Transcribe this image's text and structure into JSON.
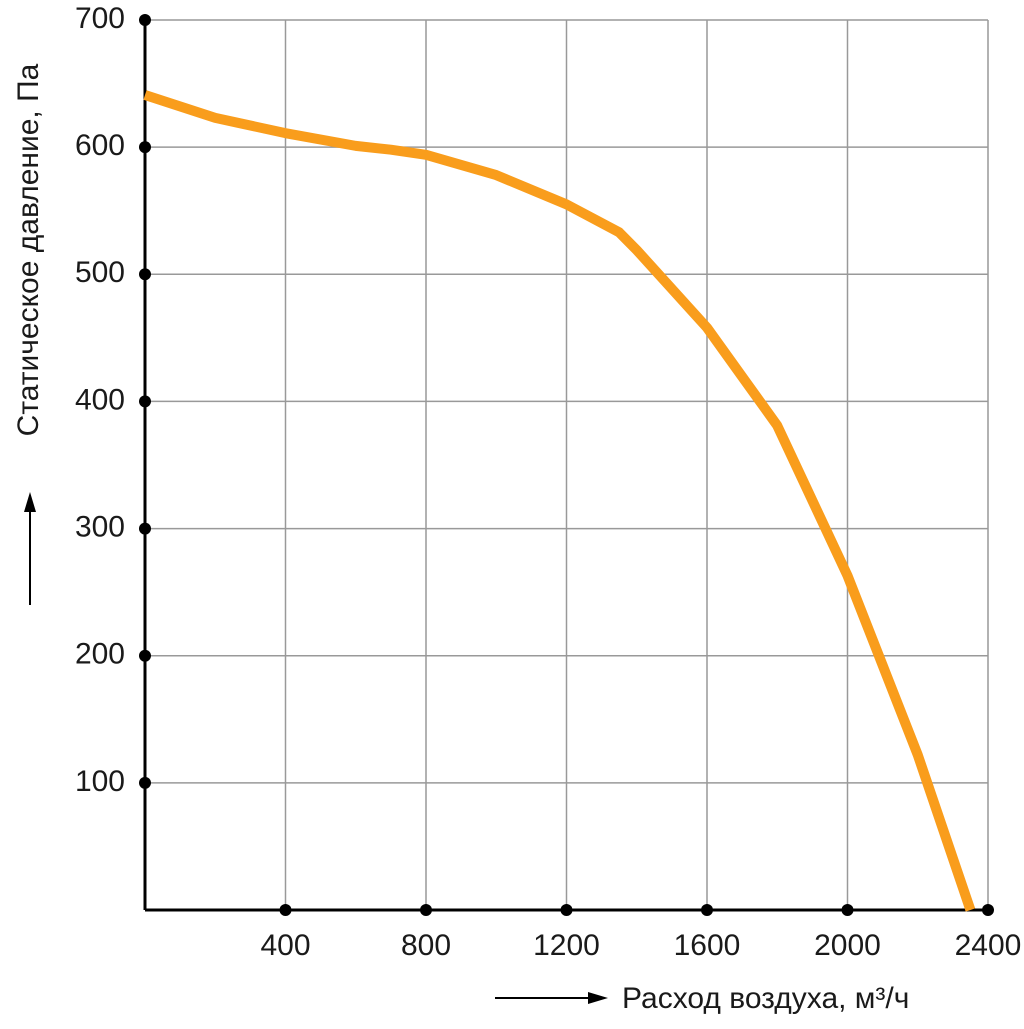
{
  "chart_data": {
    "type": "line",
    "x_label": "Расход воздуха, м³/ч",
    "y_label": "Статическое давление, Па",
    "xlim": [
      0,
      2400
    ],
    "ylim": [
      0,
      700
    ],
    "xticks": [
      400,
      800,
      1200,
      1600,
      2000,
      2400
    ],
    "yticks": [
      100,
      200,
      300,
      400,
      500,
      600,
      700
    ],
    "grid": true,
    "x": [
      0,
      200,
      400,
      600,
      700,
      800,
      1000,
      1200,
      1350,
      1400,
      1600,
      1800,
      2000,
      2200,
      2350
    ],
    "series": [
      {
        "color": "#f99d1c",
        "values": [
          641,
          623,
          611,
          601,
          598,
          594,
          578,
          555,
          533,
          519,
          458,
          381,
          263,
          122,
          0
        ]
      }
    ]
  }
}
